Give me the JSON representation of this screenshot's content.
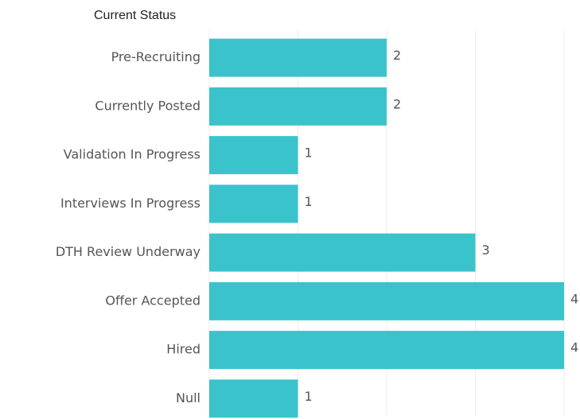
{
  "chart_data": {
    "type": "bar",
    "orientation": "horizontal",
    "title": "Current Status",
    "categories": [
      "Pre-Recruiting",
      "Currently Posted",
      "Validation In Progress",
      "Interviews In Progress",
      "DTH Review Underway",
      "Offer Accepted",
      "Hired",
      "Null"
    ],
    "values": [
      2,
      2,
      1,
      1,
      3,
      4,
      4,
      1
    ],
    "color": "#3bc3cc",
    "xlim": [
      0,
      4
    ],
    "xticks": [
      0,
      1,
      2,
      3,
      4
    ],
    "grid": true
  }
}
